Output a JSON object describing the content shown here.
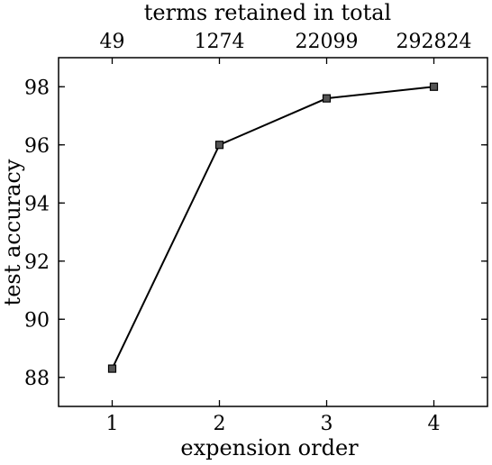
{
  "chart_data": {
    "type": "line",
    "x": [
      1,
      2,
      3,
      4
    ],
    "y": [
      88.3,
      96.0,
      97.6,
      98.0
    ],
    "xlabel": "expension order",
    "ylabel": "test accuracy",
    "top_axis_label": "terms retained in total",
    "top_axis_ticks": [
      "49",
      "1274",
      "22099",
      "292824"
    ],
    "xticks": [
      1,
      2,
      3,
      4
    ],
    "yticks": [
      88,
      90,
      92,
      94,
      96,
      98
    ],
    "xlim": [
      0.5,
      4.5
    ],
    "ylim": [
      87,
      99
    ],
    "grid": false,
    "marker": "square",
    "line_color": "#000000"
  }
}
